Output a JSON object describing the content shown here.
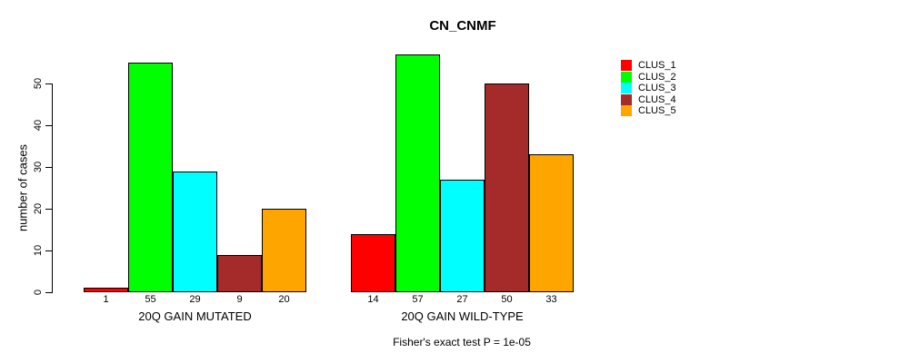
{
  "chart_data": {
    "type": "bar",
    "title": "CN_CNMF",
    "ylabel": "number of cases",
    "yticks": [
      0,
      10,
      20,
      30,
      40,
      50
    ],
    "ylim": [
      0,
      57
    ],
    "grid": false,
    "legend_position": "top-right",
    "categories": [
      "20Q GAIN MUTATED",
      "20Q GAIN WILD-TYPE"
    ],
    "series": [
      {
        "name": "CLUS_1",
        "color": "#FF0000",
        "values": [
          1,
          14
        ]
      },
      {
        "name": "CLUS_2",
        "color": "#00FF00",
        "values": [
          55,
          57
        ]
      },
      {
        "name": "CLUS_3",
        "color": "#00FFFF",
        "values": [
          29,
          27
        ]
      },
      {
        "name": "CLUS_4",
        "color": "#A52A2A",
        "values": [
          9,
          50
        ]
      },
      {
        "name": "CLUS_5",
        "color": "#FFA500",
        "values": [
          20,
          33
        ]
      }
    ],
    "bar_value_labels_shown": true,
    "annotation": "Fisher's exact test P = 1e-05"
  }
}
